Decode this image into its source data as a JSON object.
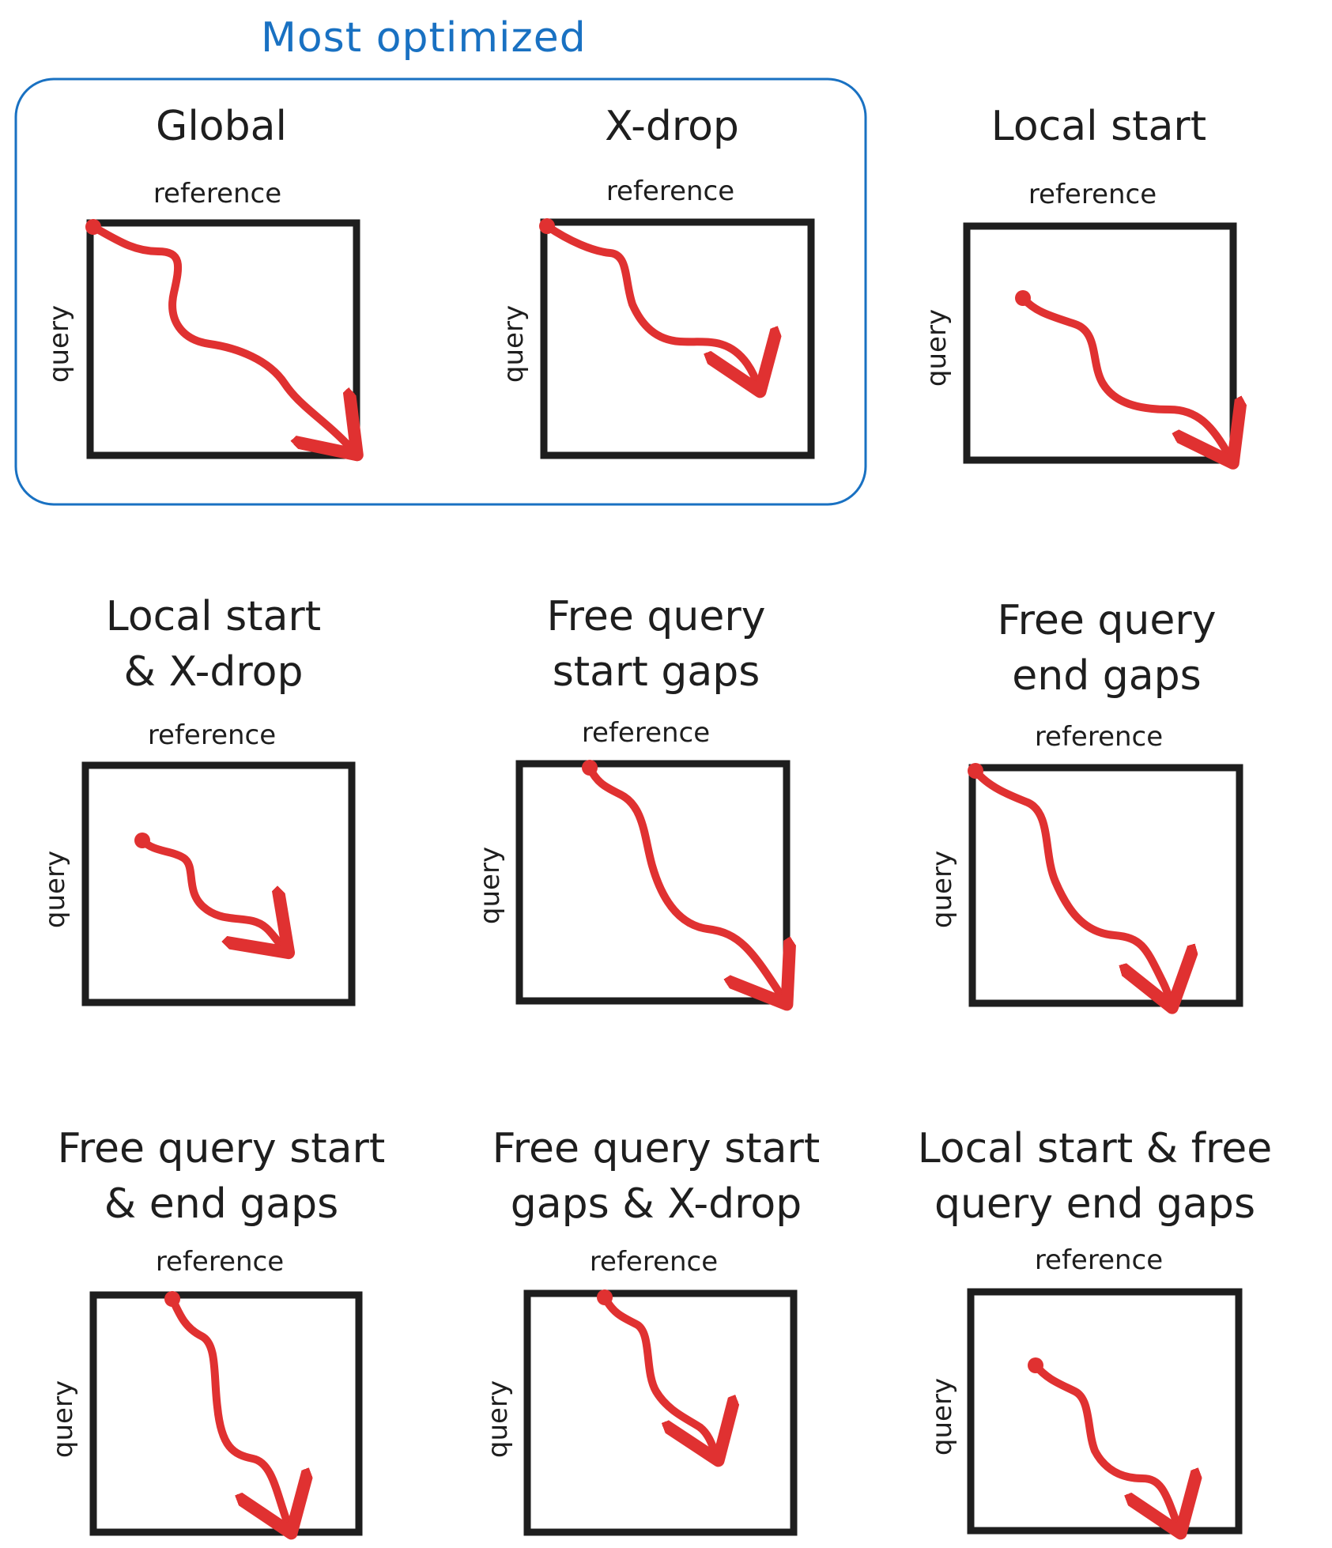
{
  "header": {
    "group_label": "Most optimized"
  },
  "axis": {
    "reference_label": "reference",
    "query_label": "query"
  },
  "colors": {
    "group_frame": "#1971c2",
    "path": "#e03131",
    "box": "#1e1e1e"
  },
  "panels": [
    {
      "title": "Global"
    },
    {
      "title": "X-drop"
    },
    {
      "title": "Local start"
    },
    {
      "title": "Local start\n& X-drop"
    },
    {
      "title": "Free query\nstart gaps"
    },
    {
      "title": "Free query\nend gaps"
    },
    {
      "title": "Free query start\n& end gaps"
    },
    {
      "title": "Free query start\ngaps & X-drop"
    },
    {
      "title": "Local start & free\nquery end gaps"
    }
  ]
}
